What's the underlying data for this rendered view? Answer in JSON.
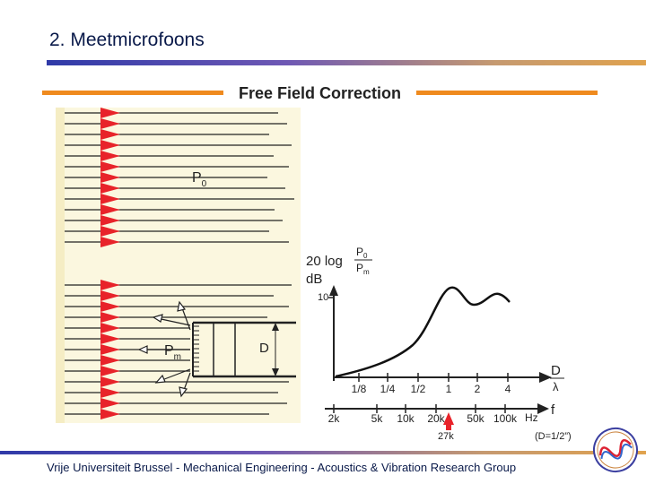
{
  "slide": {
    "title": "2. Meetmicrofoons",
    "section_heading": "Free Field Correction",
    "footer": "Vrije Universiteit Brussel - Mechanical Engineering - Acoustics & Vibration Research Group"
  },
  "diagram": {
    "p0_label": "P",
    "p0_sub": "0",
    "pm_label": "P",
    "pm_sub": "m",
    "d_label": "D"
  },
  "graph": {
    "ylabel_prefix": "20 log",
    "ylabel_frac_num": "P",
    "ylabel_frac_num_sub": "0",
    "ylabel_frac_den": "P",
    "ylabel_frac_den_sub": "m",
    "ylabel_unit": "dB",
    "y_tick_10": "10",
    "ratio_ticks": [
      "1/8",
      "1/4",
      "1/2",
      "1",
      "2",
      "4"
    ],
    "ratio_axis_label_top": "D",
    "ratio_axis_label_bottom": "λ",
    "freq_ticks": [
      "2k",
      "5k",
      "10k",
      "20k",
      "50k",
      "100k"
    ],
    "freq_unit": "Hz",
    "freq_axis_label": "f",
    "marker_label": "27k",
    "note": "(D=1/2”)"
  },
  "colors": {
    "accent_orange": "#ef8a1e",
    "rule_blue": "#2f3aa8",
    "field_red": "#e8232a",
    "panel_bg": "#fbf7df"
  }
}
